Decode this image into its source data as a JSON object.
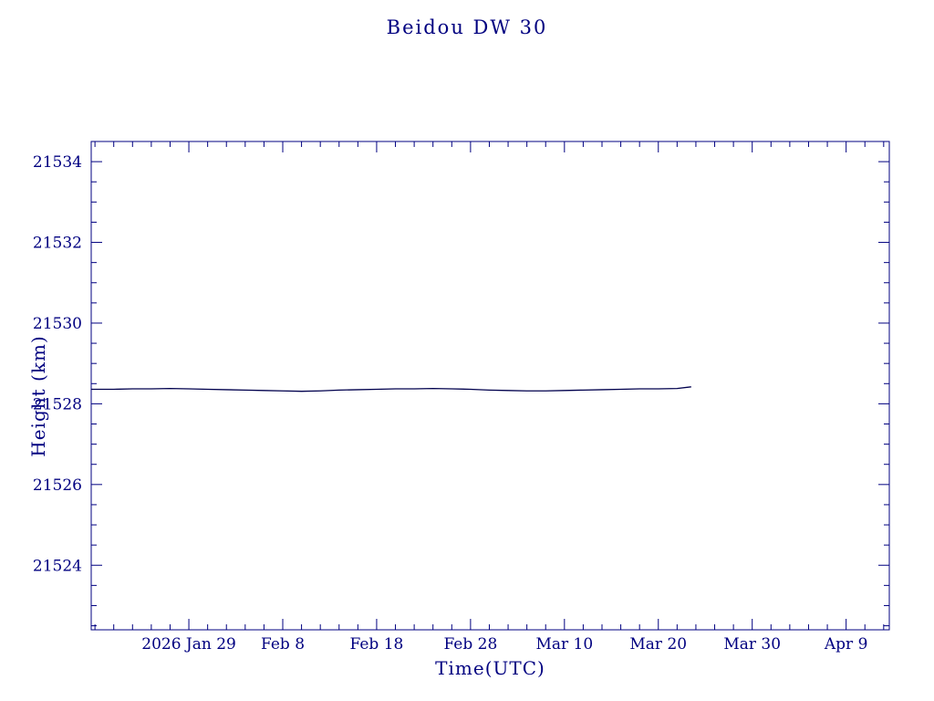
{
  "colors": {
    "axis": "#000080",
    "line": "#00004d",
    "background": "#ffffff"
  },
  "chart_data": {
    "type": "line",
    "title": "Beidou DW 30",
    "xlabel": "Time(UTC)",
    "ylabel": "Height (km)",
    "legend": "none",
    "grid": false,
    "x_axis": {
      "unit": "days relative to 2026 Jan 29",
      "range_days": [
        -10.4,
        74.6
      ],
      "major_tick_days": [
        0,
        10,
        20,
        30,
        40,
        50,
        60,
        70
      ],
      "tick_labels": [
        "2026 Jan 29",
        "Feb 8",
        "Feb 18",
        "Feb 28",
        "Mar 10",
        "Mar 20",
        "Mar 30",
        "Apr 9"
      ],
      "minor_tick_step_days": 2
    },
    "y_axis": {
      "range": [
        21522.4,
        21534.5
      ],
      "major_ticks": [
        21524,
        21526,
        21528,
        21530,
        21532,
        21534
      ],
      "tick_labels": [
        "21524",
        "21526",
        "21528",
        "21530",
        "21532",
        "21534"
      ],
      "minor_tick_step": 0.5
    },
    "series": [
      {
        "name": "height_km",
        "color": "#00004d",
        "x": [
          -10.4,
          -8,
          -6,
          -4,
          -2,
          0,
          2,
          4,
          6,
          8,
          10,
          12,
          14,
          16,
          18,
          20,
          22,
          24,
          26,
          28,
          30,
          32,
          34,
          36,
          38,
          40,
          42,
          44,
          46,
          48,
          50,
          52,
          53.5
        ],
        "y": [
          21528.36,
          21528.36,
          21528.37,
          21528.37,
          21528.38,
          21528.37,
          21528.36,
          21528.35,
          21528.34,
          21528.33,
          21528.32,
          21528.31,
          21528.32,
          21528.34,
          21528.35,
          21528.36,
          21528.37,
          21528.37,
          21528.38,
          21528.37,
          21528.36,
          21528.34,
          21528.33,
          21528.32,
          21528.32,
          21528.33,
          21528.34,
          21528.35,
          21528.36,
          21528.37,
          21528.37,
          21528.38,
          21528.42
        ]
      }
    ]
  }
}
